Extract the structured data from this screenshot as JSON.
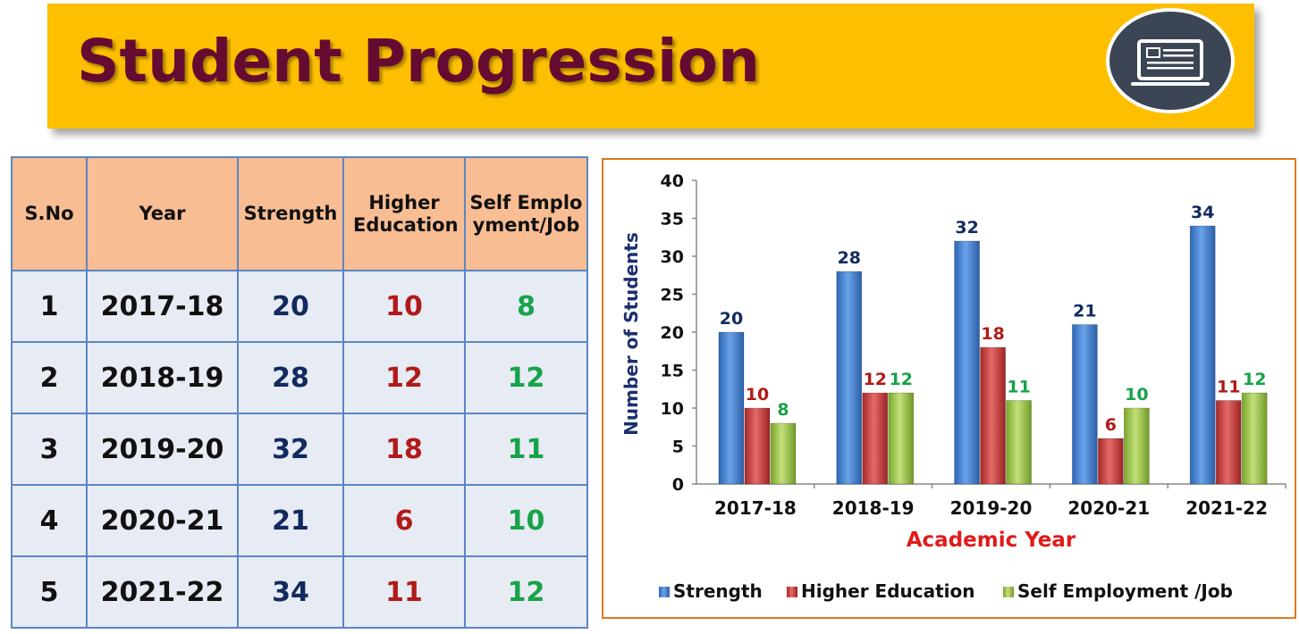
{
  "header": {
    "title": "Student Progression",
    "logo_icon": "laptop-document-icon"
  },
  "table": {
    "headers": [
      "S.No",
      "Year",
      "Strength",
      "Higher Education",
      "Self Employment/Job"
    ],
    "rows": [
      [
        "1",
        "2017-18",
        "20",
        "10",
        "8"
      ],
      [
        "2",
        "2018-19",
        "28",
        "12",
        "12"
      ],
      [
        "3",
        "2019-20",
        "32",
        "18",
        "11"
      ],
      [
        "4",
        "2020-21",
        "21",
        "6",
        "10"
      ],
      [
        "5",
        "2021-22",
        "34",
        "11",
        "12"
      ]
    ]
  },
  "colors": {
    "banner": "#fdbf00",
    "title": "#650b32",
    "strength": "#3f7ed0",
    "higher_education": "#c93a3a",
    "self_employment": "#9bc444",
    "strength_text": "#112a60",
    "higher_education_text": "#b11a1a",
    "self_employment_text": "#17a34a",
    "axis_title_y": "#1c2f6e",
    "axis_title_x": "#e01b1b",
    "chart_border": "#e0781f"
  },
  "chart_data": {
    "type": "bar",
    "categories": [
      "2017-18",
      "2018-19",
      "2019-20",
      "2020-21",
      "2021-22"
    ],
    "series": [
      {
        "name": "Strength",
        "values": [
          20,
          28,
          32,
          21,
          34
        ]
      },
      {
        "name": "Higher Education",
        "values": [
          10,
          12,
          18,
          6,
          11
        ]
      },
      {
        "name": "Self Employment /Job",
        "values": [
          8,
          12,
          11,
          10,
          12
        ]
      }
    ],
    "xlabel": "Academic Year",
    "ylabel": "Number of Students",
    "ylim": [
      0,
      40
    ],
    "yticks": [
      0,
      5,
      10,
      15,
      20,
      25,
      30,
      35,
      40
    ],
    "grid": false,
    "legend": "bottom",
    "data_labels": true
  }
}
